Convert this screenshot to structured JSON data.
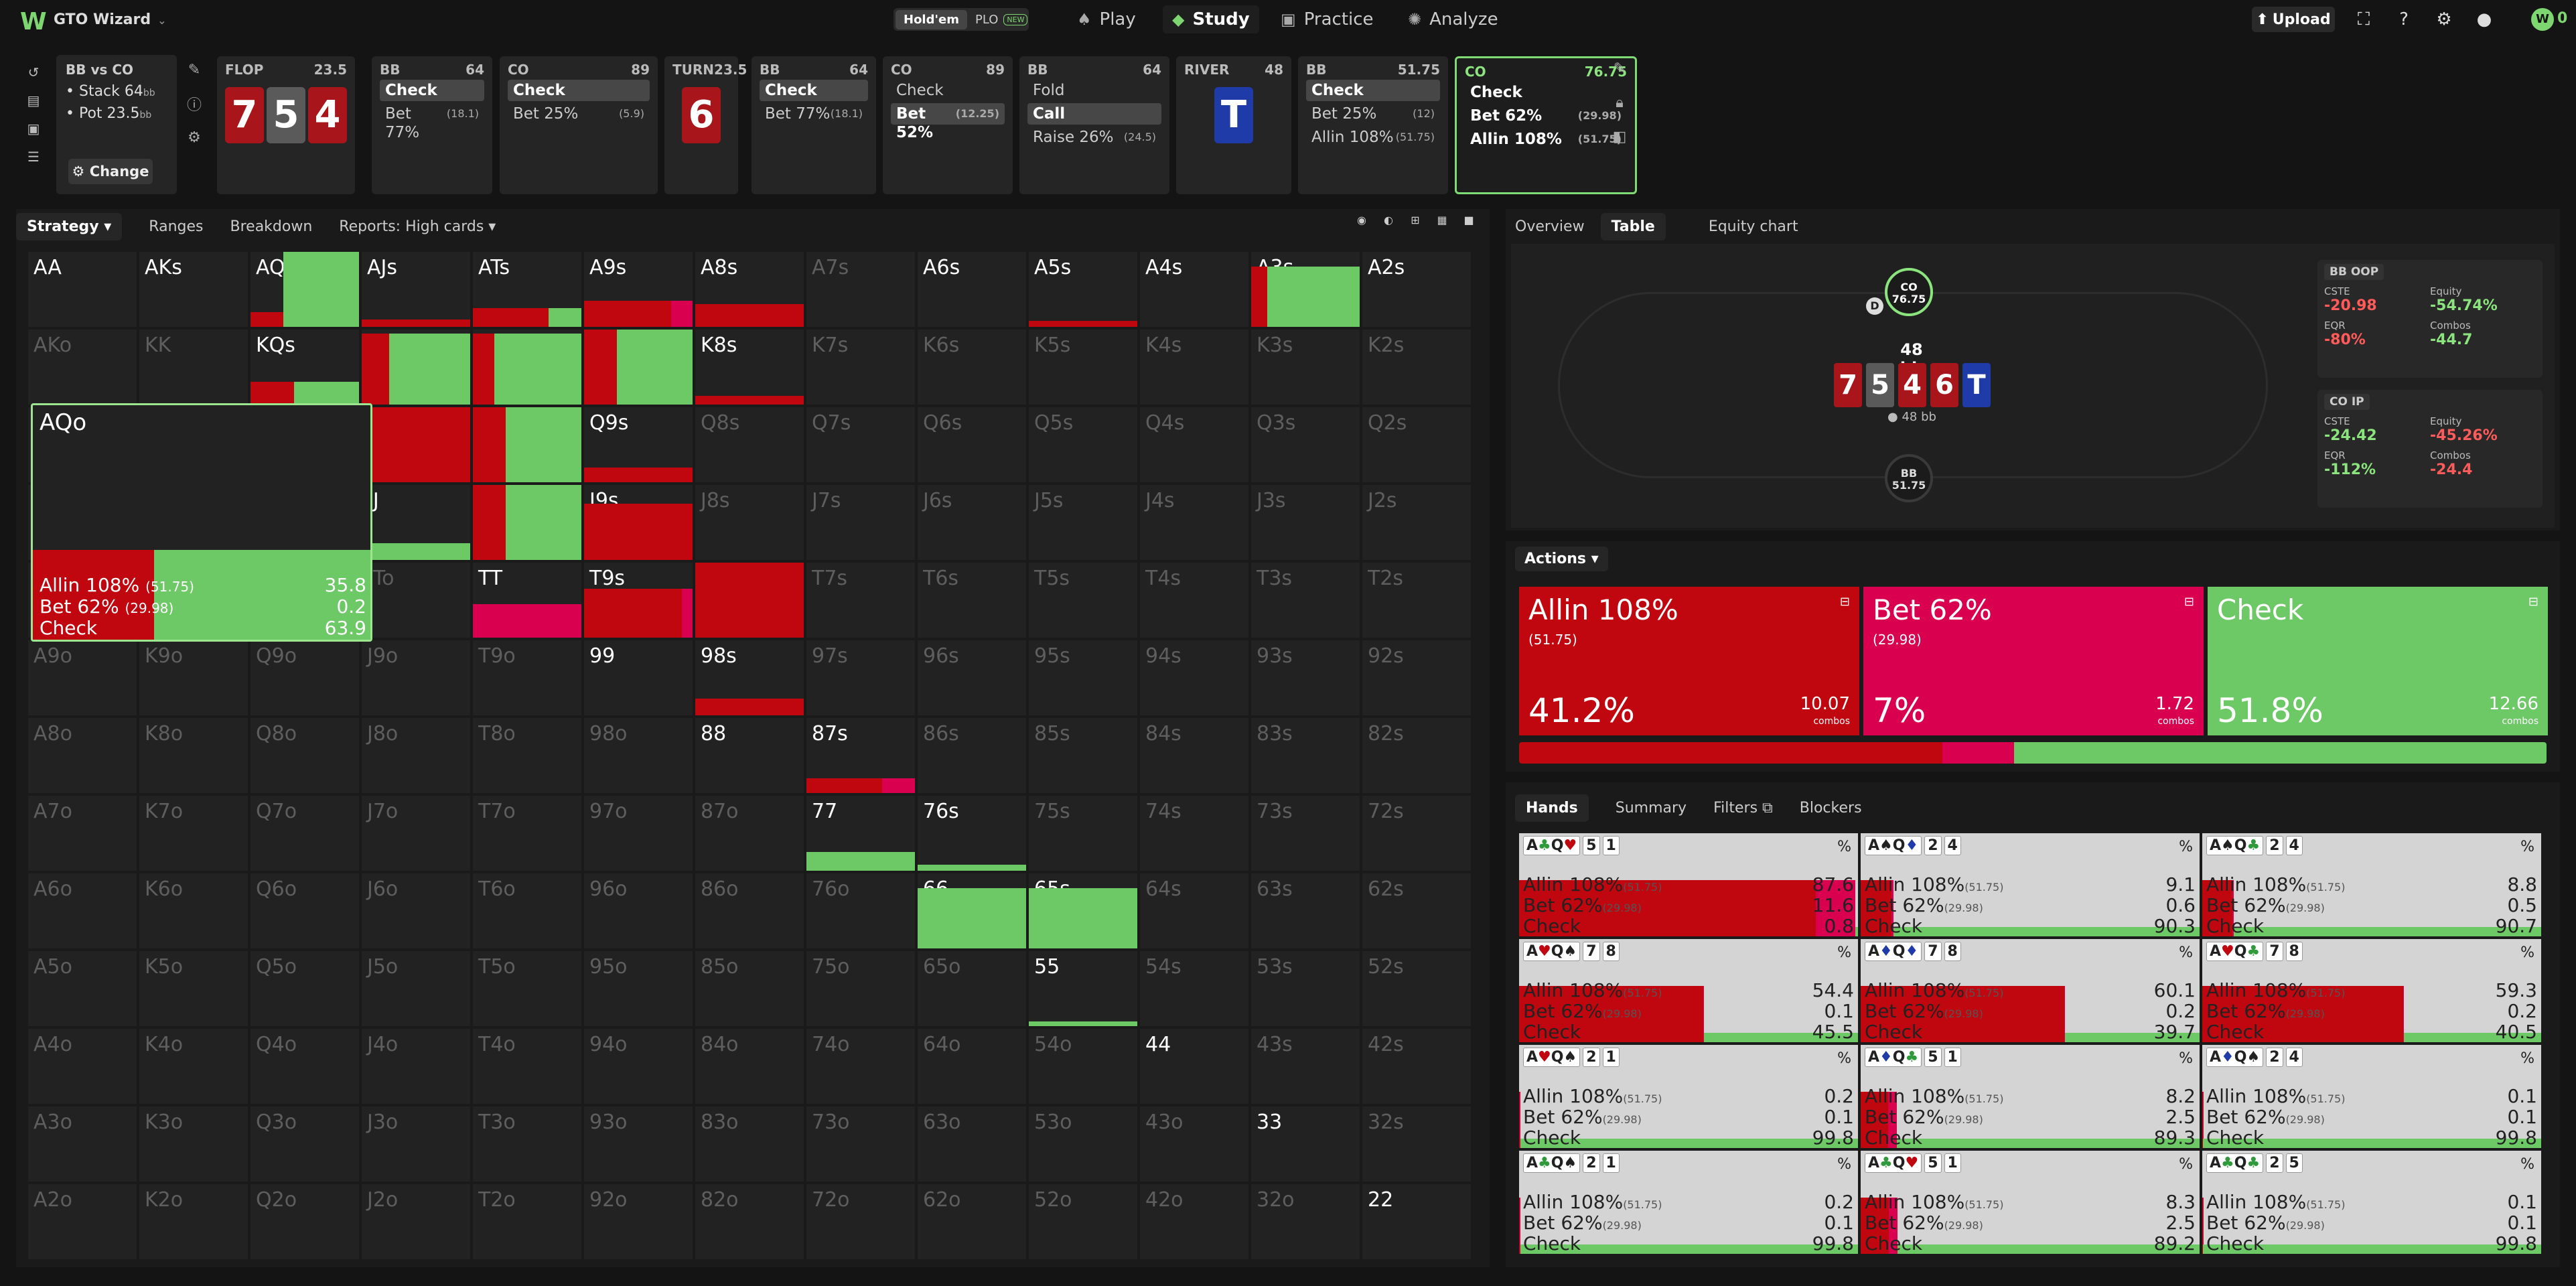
{
  "nav": {
    "logo": "W",
    "app_name": "GTO Wizard",
    "game_toggle": {
      "holdem": "Hold'em",
      "plo": "PLO",
      "new_badge": "NEW"
    },
    "items": [
      {
        "label": "Play",
        "icon": "spade-icon"
      },
      {
        "label": "Study",
        "icon": "graduation-cap-icon",
        "active": true
      },
      {
        "label": "Practice",
        "icon": "gamepad-icon"
      },
      {
        "label": "Analyze",
        "icon": "lightbulb-icon"
      }
    ],
    "upload": "Upload",
    "user_count": "0"
  },
  "info": {
    "title": "BB vs CO",
    "stack": "Stack 64",
    "stack_unit": "bb",
    "pot": "Pot 23.5",
    "pot_unit": "bb",
    "change": "Change"
  },
  "nodes": [
    {
      "label": "FLOP",
      "pot": "23.5",
      "cards": [
        "7",
        "5",
        "4"
      ],
      "card_colors": [
        "red",
        "gray",
        "red"
      ]
    },
    {
      "label": "BB",
      "pot": "64",
      "actions": [
        {
          "t": "Check",
          "sel": true
        },
        {
          "t": "Bet 77%",
          "n": "(18.1)"
        }
      ]
    },
    {
      "label": "CO",
      "pot": "89",
      "actions": [
        {
          "t": "Check",
          "sel": true
        },
        {
          "t": "Bet 25%",
          "n": "(5.9)"
        }
      ]
    },
    {
      "label": "TURN",
      "pot": "23.5",
      "cards": [
        "6"
      ],
      "card_colors": [
        "red"
      ]
    },
    {
      "label": "BB",
      "pot": "64",
      "actions": [
        {
          "t": "Check",
          "sel": true
        },
        {
          "t": "Bet 77%",
          "n": "(18.1)"
        }
      ]
    },
    {
      "label": "CO",
      "pot": "89",
      "actions": [
        {
          "t": "Check"
        },
        {
          "t": "Bet 52%",
          "n": "(12.25)",
          "sel": true
        }
      ]
    },
    {
      "label": "BB",
      "pot": "64",
      "actions": [
        {
          "t": "Fold"
        },
        {
          "t": "Call",
          "sel": true
        },
        {
          "t": "Raise 26%",
          "n": "(24.5)"
        }
      ]
    },
    {
      "label": "RIVER",
      "pot": "48",
      "cards": [
        "T"
      ],
      "card_colors": [
        "blue"
      ]
    },
    {
      "label": "BB",
      "pot": "51.75",
      "actions": [
        {
          "t": "Check",
          "sel": true
        },
        {
          "t": "Bet 25%",
          "n": "(12)"
        },
        {
          "t": "Allin 108%",
          "n": "(51.75)"
        }
      ]
    },
    {
      "label": "CO",
      "pot": "76.75",
      "active": true,
      "actions": [
        {
          "t": "Check"
        },
        {
          "t": "Bet 62%",
          "n": "(29.98)"
        },
        {
          "t": "Allin 108%",
          "n": "(51.75)"
        }
      ]
    }
  ],
  "left_tabs": [
    "Strategy",
    "Ranges",
    "Breakdown",
    "Reports: High cards"
  ],
  "hand_grid": {
    "ranks": [
      "A",
      "K",
      "Q",
      "J",
      "T",
      "9",
      "8",
      "7",
      "6",
      "5",
      "4",
      "3",
      "2"
    ],
    "highlight": {
      "hand": "AQo",
      "lines": [
        {
          "t": "Allin 108%",
          "n": "(51.75)",
          "v": "35.8"
        },
        {
          "t": "Bet 62%",
          "n": "(29.98)",
          "v": "0.2"
        },
        {
          "t": "Check",
          "n": "",
          "v": "63.9"
        }
      ]
    }
  },
  "right_tabs": [
    "Overview",
    "Table",
    "Equity chart"
  ],
  "table": {
    "co": {
      "pos": "CO",
      "stack": "76.75"
    },
    "bb": {
      "pos": "BB",
      "stack": "51.75"
    },
    "dealer": "D",
    "pot": "48 bb",
    "board": [
      "7",
      "5",
      "4",
      "6",
      "T"
    ],
    "board_colors": [
      "red",
      "gray",
      "red",
      "red",
      "blue"
    ],
    "chips": "48 bb"
  },
  "stats": [
    {
      "pos": "BB OOP",
      "cste": "-20.98",
      "equity": "-54.74%",
      "eqr": "-80%",
      "combos": "-44.7",
      "cste_neg": true,
      "eq_pos": true,
      "eqr_neg": true,
      "combos_pos": true
    },
    {
      "pos": "CO IP",
      "cste": "-24.42",
      "equity": "-45.26%",
      "eqr": "-112%",
      "combos": "-24.4",
      "cste_neg": false,
      "eq_pos": false,
      "eqr_neg": false,
      "combos_pos": false
    }
  ],
  "stat_labels": {
    "cste": "CSTE",
    "equity": "Equity",
    "eqr": "EQR",
    "combos": "Combos"
  },
  "actions": {
    "title": "Actions",
    "items": [
      {
        "name": "Allin 108%",
        "size": "(51.75)",
        "pct": "41.2%",
        "combos": "10.07",
        "color": "#c0060e",
        "freq": 41.2
      },
      {
        "name": "Bet 62%",
        "size": "(29.98)",
        "pct": "7%",
        "combos": "1.72",
        "color": "#d8004f",
        "freq": 7.0
      },
      {
        "name": "Check",
        "size": "",
        "pct": "51.8%",
        "combos": "12.66",
        "color": "#6cc965",
        "freq": 51.8
      }
    ],
    "combos_label": "combos"
  },
  "hand_tabs": [
    "Hands",
    "Summary",
    "Filters",
    "Blockers"
  ],
  "hands": [
    {
      "c": [
        "A♣Q♥",
        "5",
        "1"
      ],
      "v": [
        "87.6",
        "11.6",
        "0.8"
      ]
    },
    {
      "c": [
        "A♠Q♦",
        "2",
        "4"
      ],
      "v": [
        "9.1",
        "0.6",
        "90.3"
      ]
    },
    {
      "c": [
        "A♠Q♣",
        "2",
        "4"
      ],
      "v": [
        "8.8",
        "0.5",
        "90.7"
      ]
    },
    {
      "c": [
        "A♥Q♠",
        "7",
        "8"
      ],
      "v": [
        "54.4",
        "0.1",
        "45.5"
      ]
    },
    {
      "c": [
        "A♦Q♦",
        "7",
        "8"
      ],
      "v": [
        "60.1",
        "0.2",
        "39.7"
      ]
    },
    {
      "c": [
        "A♥Q♣",
        "7",
        "8"
      ],
      "v": [
        "59.3",
        "0.2",
        "40.5"
      ]
    },
    {
      "c": [
        "A♥Q♠",
        "2",
        "1"
      ],
      "v": [
        "0.2",
        "0.1",
        "99.8"
      ]
    },
    {
      "c": [
        "A♦Q♣",
        "5",
        "1"
      ],
      "v": [
        "8.2",
        "2.5",
        "89.3"
      ]
    },
    {
      "c": [
        "A♦Q♠",
        "2",
        "4"
      ],
      "v": [
        "0.1",
        "0.1",
        "99.8"
      ]
    },
    {
      "c": [
        "A♣Q♠",
        "2",
        "1"
      ],
      "v": [
        "0.2",
        "0.1",
        "99.8"
      ]
    },
    {
      "c": [
        "A♣Q♥",
        "5",
        "1"
      ],
      "v": [
        "8.3",
        "2.5",
        "89.2"
      ]
    },
    {
      "c": [
        "A♣Q♣",
        "2",
        "5"
      ],
      "v": [
        "0.1",
        "0.1",
        "99.8"
      ]
    }
  ],
  "hand_line_labels": [
    {
      "t": "Allin 108%",
      "n": "(51.75)"
    },
    {
      "t": "Bet 62%",
      "n": "(29.98)"
    },
    {
      "t": "Check",
      "n": ""
    }
  ],
  "pct_symbol": "%"
}
